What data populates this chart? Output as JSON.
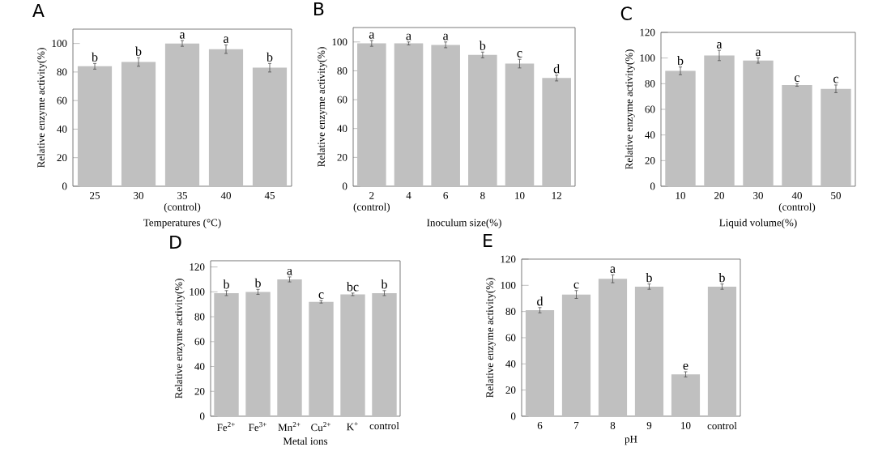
{
  "chart_data": [
    {
      "type": "bar",
      "title": "A",
      "xlabel": "Temperatures (°C)",
      "ylabel": "Relative enzyme activity(%)",
      "categories": [
        "25",
        "30",
        "35 (control)",
        "40",
        "45"
      ],
      "values": [
        84,
        87,
        100,
        96,
        83
      ],
      "errors": [
        2,
        3,
        2,
        3,
        3
      ],
      "color": "#c0c0c0",
      "ylim": [
        0,
        110
      ],
      "yticks": [
        0,
        20,
        40,
        60,
        80,
        100
      ],
      "annotations": [
        {
          "text": "b",
          "x": "25",
          "y": 86
        },
        {
          "text": "b",
          "x": "30",
          "y": 90
        },
        {
          "text": "a",
          "x": "35 (control)",
          "y": 102
        },
        {
          "text": "a",
          "x": "40",
          "y": 99
        },
        {
          "text": "b",
          "x": "45",
          "y": 86
        }
      ]
    },
    {
      "type": "bar",
      "title": "B",
      "xlabel": "Inoculum size(%)",
      "ylabel": "Relative enzyme activity(%)",
      "categories": [
        "2 (control)",
        "4",
        "6",
        "8",
        "10",
        "12"
      ],
      "values": [
        99,
        99,
        98,
        91,
        85,
        75
      ],
      "errors": [
        2,
        1,
        2,
        2,
        3,
        2
      ],
      "color": "#c0c0c0",
      "ylim": [
        0,
        110
      ],
      "yticks": [
        0,
        20,
        40,
        60,
        80,
        100
      ],
      "annotations": [
        {
          "text": "a",
          "x": "2 (control)",
          "y": 101
        },
        {
          "text": "a",
          "x": "4",
          "y": 100
        },
        {
          "text": "a",
          "x": "6",
          "y": 100
        },
        {
          "text": "b",
          "x": "8",
          "y": 93
        },
        {
          "text": "c",
          "x": "10",
          "y": 88
        },
        {
          "text": "d",
          "x": "12",
          "y": 77
        }
      ]
    },
    {
      "type": "bar",
      "title": "C",
      "xlabel": "Liquid volume(%)",
      "ylabel": "Relative enzyme activity(%)",
      "categories": [
        "10",
        "20",
        "30",
        "40 (control)",
        "50"
      ],
      "values": [
        90,
        102,
        98,
        79,
        76
      ],
      "errors": [
        3,
        4,
        2,
        1,
        3
      ],
      "color": "#c0c0c0",
      "ylim": [
        0,
        120
      ],
      "yticks": [
        0,
        20,
        40,
        60,
        80,
        100,
        120
      ],
      "annotations": [
        {
          "text": "b",
          "x": "10",
          "y": 93
        },
        {
          "text": "a",
          "x": "20",
          "y": 106
        },
        {
          "text": "a",
          "x": "30",
          "y": 100
        },
        {
          "text": "c",
          "x": "40 (control)",
          "y": 80
        },
        {
          "text": "c",
          "x": "50",
          "y": 79
        }
      ]
    },
    {
      "type": "bar",
      "title": "D",
      "xlabel": "Metal ions",
      "ylabel": "Relative enzyme activity(%)",
      "categories": [
        "Fe$^{2+}$",
        "Fe$^{3+}$",
        "Mn$^{2+}$",
        "Cu$^{2+}$",
        "K$^{+}$",
        "control"
      ],
      "values": [
        99,
        100,
        110,
        92,
        98,
        99
      ],
      "errors": [
        2,
        2,
        2,
        1,
        1,
        2
      ],
      "color": "#c0c0c0",
      "ylim": [
        0,
        125
      ],
      "yticks": [
        0,
        20,
        40,
        60,
        80,
        100,
        120
      ],
      "annotations": [
        {
          "text": "b",
          "x": "Fe$^{2+}$",
          "y": 101
        },
        {
          "text": "b",
          "x": "Fe$^{3+}$",
          "y": 102
        },
        {
          "text": "a",
          "x": "Mn$^{2+}$",
          "y": 112
        },
        {
          "text": "c",
          "x": "Cu$^{2+}$",
          "y": 93
        },
        {
          "text": "bc",
          "x": "K$^{+}$",
          "y": 99
        },
        {
          "text": "b",
          "x": "control",
          "y": 101
        }
      ]
    },
    {
      "type": "bar",
      "title": "E",
      "xlabel": "pH",
      "ylabel": "Relative enzyme activity(%)",
      "categories": [
        "6",
        "7",
        "8",
        "9",
        "10",
        "control"
      ],
      "values": [
        81,
        93,
        105,
        99,
        32,
        99
      ],
      "errors": [
        2,
        3,
        3,
        2,
        2,
        2
      ],
      "color": "#c0c0c0",
      "ylim": [
        0,
        120
      ],
      "yticks": [
        0,
        20,
        40,
        60,
        80,
        100,
        120
      ],
      "annotations": [
        {
          "text": "d",
          "x": "6",
          "y": 83
        },
        {
          "text": "c",
          "x": "7",
          "y": 96
        },
        {
          "text": "a",
          "x": "8",
          "y": 108
        },
        {
          "text": "b",
          "x": "9",
          "y": 101
        },
        {
          "text": "e",
          "x": "10",
          "y": 34
        },
        {
          "text": "b",
          "x": "control",
          "y": 101
        }
      ]
    }
  ]
}
